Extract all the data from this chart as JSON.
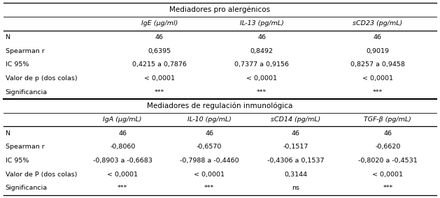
{
  "section1_header": "Mediadores pro alergénicos",
  "section1_cols": [
    "",
    "IgE (µg/ml)",
    "IL-13 (pg/mL)",
    "sCD23 (pg/mL)"
  ],
  "section1_rows": [
    [
      "N",
      "46",
      "46",
      "46"
    ],
    [
      "Spearman r",
      "0,6395",
      "0,8492",
      "0,9019"
    ],
    [
      "IC 95%",
      "0,4215 a 0,7876",
      "0,7377 a 0,9156",
      "0,8257 a 0,9458"
    ],
    [
      "Valor de p (dos colas)",
      "< 0,0001",
      "< 0,0001",
      "< 0,0001"
    ],
    [
      "Significancia",
      "***",
      "***",
      "***"
    ]
  ],
  "section2_header": "Mediadores de regulación inmunológica",
  "section2_cols": [
    "",
    "IgA (µg/mL)",
    "IL-10 (pg/mL)",
    "sCD14 (pg/mL)",
    "TGF-β (pg/mL)"
  ],
  "section2_rows": [
    [
      "N",
      "46",
      "46",
      "46",
      "46"
    ],
    [
      "Spearman r",
      "-0,8060",
      "-0,6570",
      "-0,1517",
      "-0,6620"
    ],
    [
      "IC 95%",
      "-0,8903 a -0,6683",
      "-0,7988 a -0,4460",
      "-0,4306 a 0,1537",
      "-0,8020 a -0,4531"
    ],
    [
      "Valor de P (dos colas)",
      "< 0,0001",
      "< 0,0001",
      "0,3144",
      "< 0,0001"
    ],
    [
      "Significancia",
      "***",
      "***",
      "ns",
      "***"
    ]
  ],
  "font_size": 6.8,
  "header_font_size": 7.5,
  "bg_color": "#ffffff",
  "line_color": "#000000",
  "s1_col_boundaries": [
    0.0,
    0.255,
    0.465,
    0.728,
    1.0
  ],
  "s2_col_boundaries": [
    0.0,
    0.175,
    0.375,
    0.575,
    0.775,
    1.0
  ]
}
